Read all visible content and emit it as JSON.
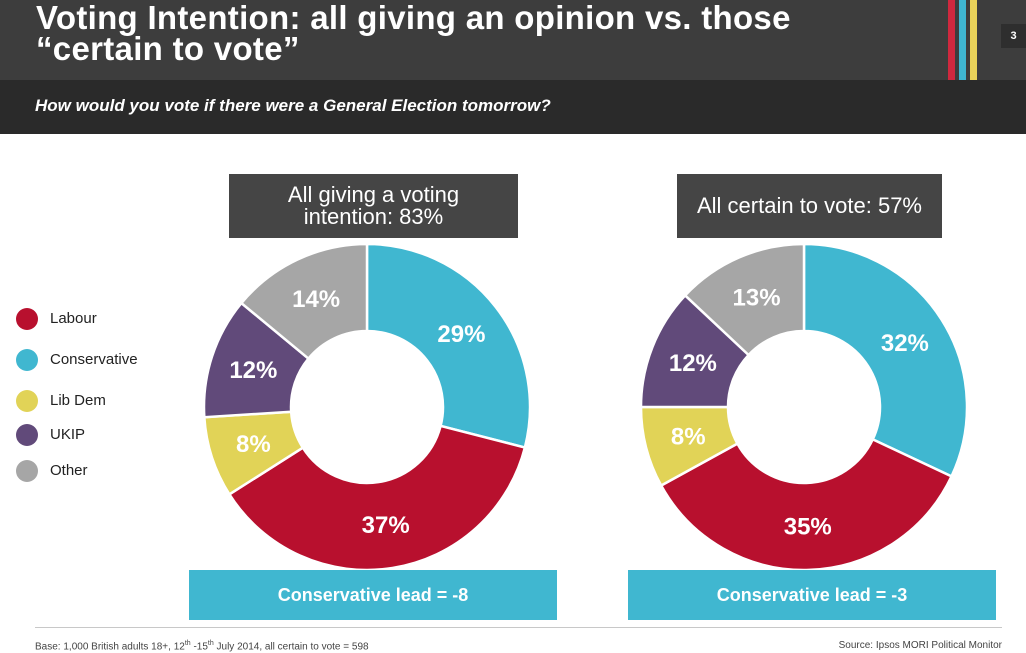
{
  "header": {
    "title": "Voting Intention: all giving an opinion vs. those “certain to vote”",
    "page_number": "3",
    "question": "How would you vote if there were a General Election tomorrow?"
  },
  "colors": {
    "labour": "#b8102e",
    "conservative": "#40b7d0",
    "libdem": "#e1d357",
    "ukip": "#614a7a",
    "other": "#a6a6a6",
    "stripe_red": "#d0283e",
    "stripe_blue": "#3fb6d1",
    "stripe_yellow": "#e9d25a"
  },
  "legend": [
    {
      "key": "labour",
      "label": "Labour"
    },
    {
      "key": "conservative",
      "label": "Conservative"
    },
    {
      "key": "libdem",
      "label": "Lib Dem"
    },
    {
      "key": "ukip",
      "label": "UKIP"
    },
    {
      "key": "other",
      "label": "Other"
    }
  ],
  "chart_data": [
    {
      "type": "pie",
      "title": "All giving a voting intention: 83%",
      "slices": [
        {
          "key": "conservative",
          "label": "Conservative",
          "value": 29,
          "display": "29%"
        },
        {
          "key": "labour",
          "label": "Labour",
          "value": 37,
          "display": "37%"
        },
        {
          "key": "libdem",
          "label": "Lib Dem",
          "value": 8,
          "display": "8%"
        },
        {
          "key": "ukip",
          "label": "UKIP",
          "value": 12,
          "display": "12%"
        },
        {
          "key": "other",
          "label": "Other",
          "value": 14,
          "display": "14%"
        }
      ],
      "lead_text": "Conservative lead = -8"
    },
    {
      "type": "pie",
      "title": "All certain to vote: 57%",
      "slices": [
        {
          "key": "conservative",
          "label": "Conservative",
          "value": 32,
          "display": "32%"
        },
        {
          "key": "labour",
          "label": "Labour",
          "value": 35,
          "display": "35%"
        },
        {
          "key": "libdem",
          "label": "Lib Dem",
          "value": 8,
          "display": "8%"
        },
        {
          "key": "ukip",
          "label": "UKIP",
          "value": 12,
          "display": "12%"
        },
        {
          "key": "other",
          "label": "Other",
          "value": 13,
          "display": "13%"
        }
      ],
      "lead_text": "Conservative lead = -3"
    }
  ],
  "footer": {
    "base_prefix": "Base: 1,000 British adults 18+, 12",
    "sup1": "th",
    "base_mid": " -15",
    "sup2": "th",
    "base_suffix": " July 2014, all certain to vote = 598",
    "source": "Source: Ipsos MORI Political Monitor"
  }
}
